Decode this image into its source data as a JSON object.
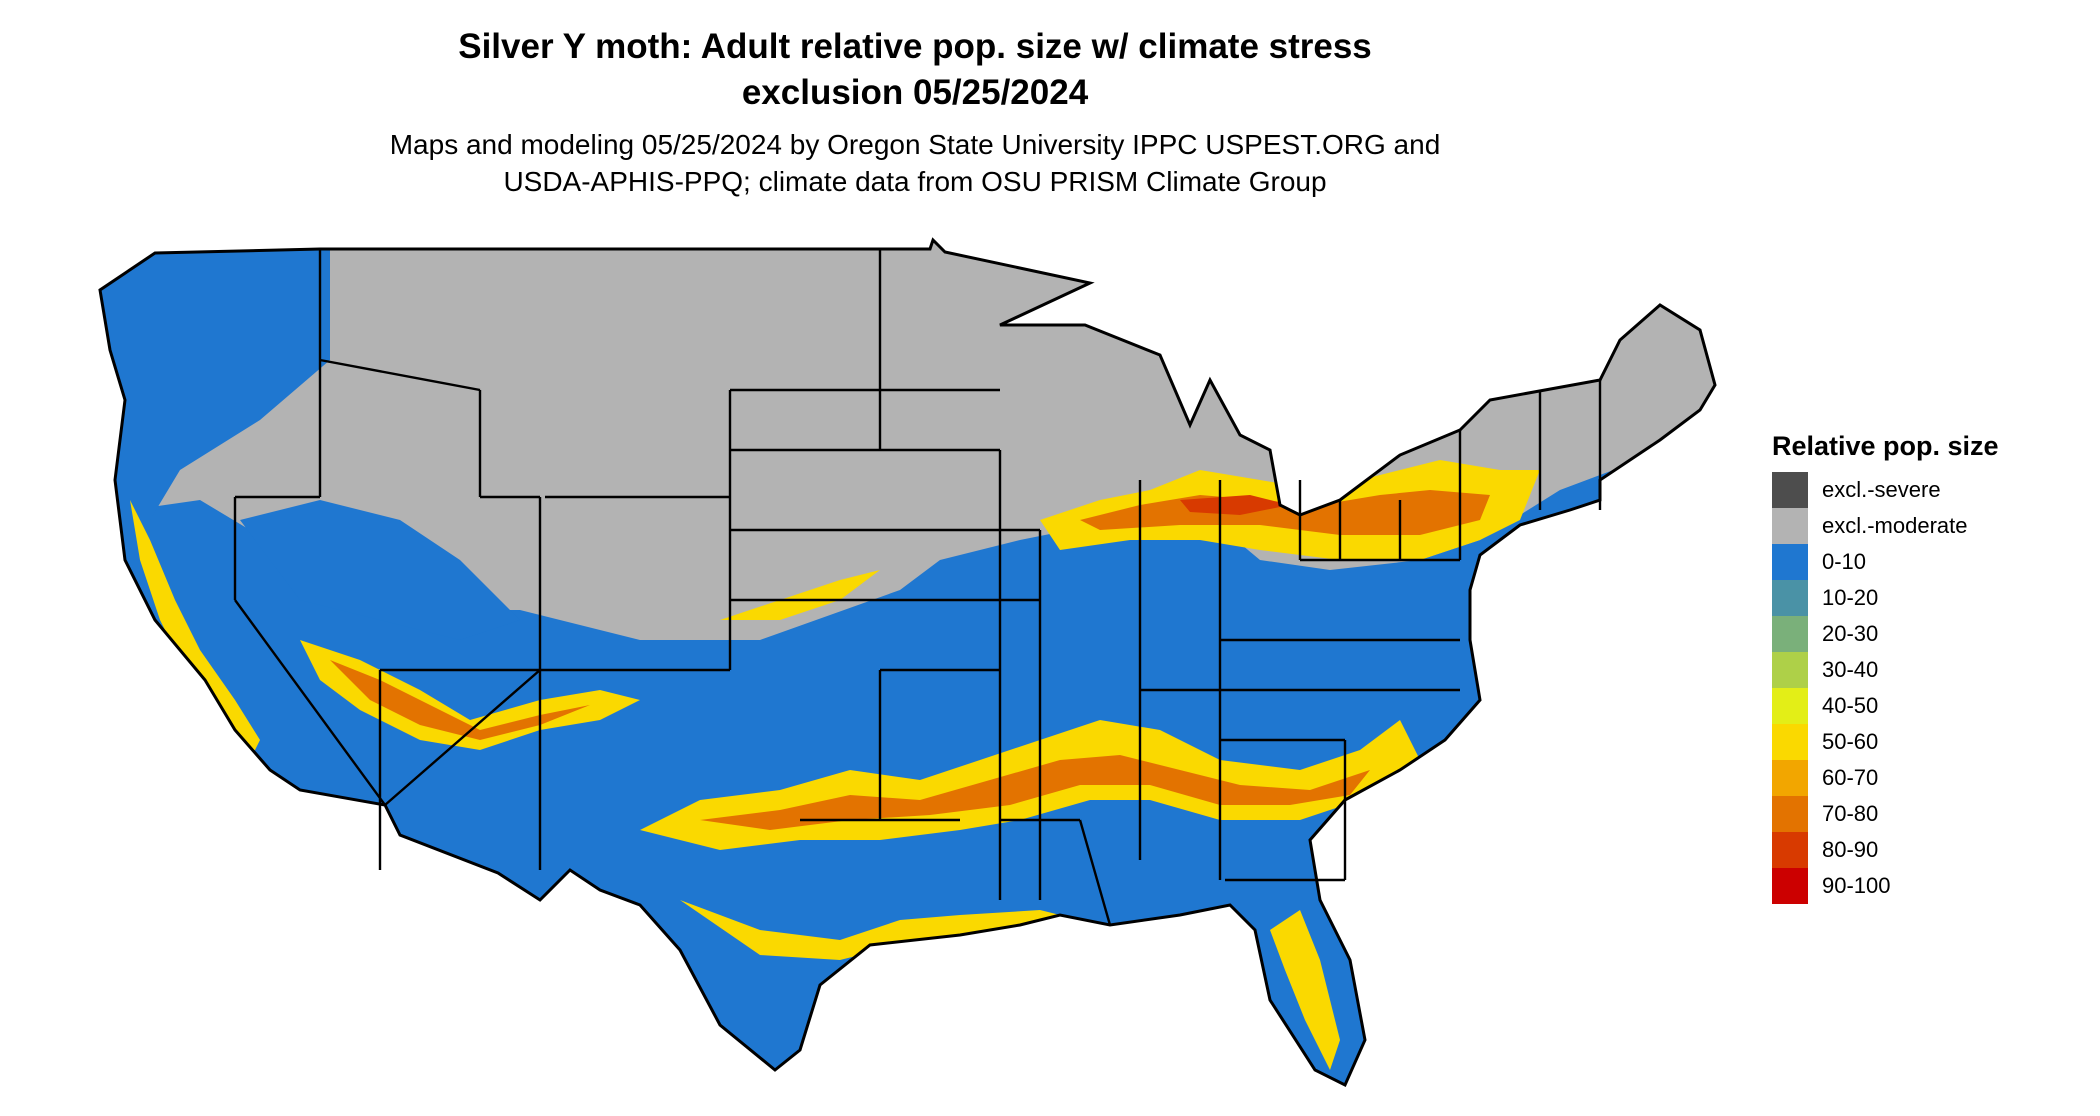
{
  "title": {
    "line1": "Silver Y moth: Adult relative pop. size w/ climate stress",
    "line2": "exclusion 05/25/2024"
  },
  "subtitle": {
    "line1": "Maps and modeling 05/25/2024 by Oregon State University IPPC USPEST.ORG and",
    "line2": "USDA-APHIS-PPQ; climate data from OSU PRISM Climate Group"
  },
  "legend": {
    "title": "Relative pop. size",
    "items": [
      {
        "label": "excl.-severe",
        "color": "#4d4d4d"
      },
      {
        "label": "excl.-moderate",
        "color": "#b3b3b3"
      },
      {
        "label": "0-10",
        "color": "#1f77d0"
      },
      {
        "label": "10-20",
        "color": "#4a92a6"
      },
      {
        "label": "20-30",
        "color": "#7ab07a"
      },
      {
        "label": "30-40",
        "color": "#aed048"
      },
      {
        "label": "40-50",
        "color": "#e3ee17"
      },
      {
        "label": "50-60",
        "color": "#fad900"
      },
      {
        "label": "60-70",
        "color": "#f2a600"
      },
      {
        "label": "70-80",
        "color": "#e37300"
      },
      {
        "label": "80-90",
        "color": "#d83a00"
      },
      {
        "label": "90-100",
        "color": "#cc0000"
      }
    ]
  },
  "map": {
    "region": "contiguous-united-states",
    "colors": {
      "excluded": "#b3b3b3",
      "low": "#1f77d0",
      "yellow": "#fad900",
      "orange": "#e37300",
      "red": "#d83a00",
      "border": "#000000"
    }
  }
}
